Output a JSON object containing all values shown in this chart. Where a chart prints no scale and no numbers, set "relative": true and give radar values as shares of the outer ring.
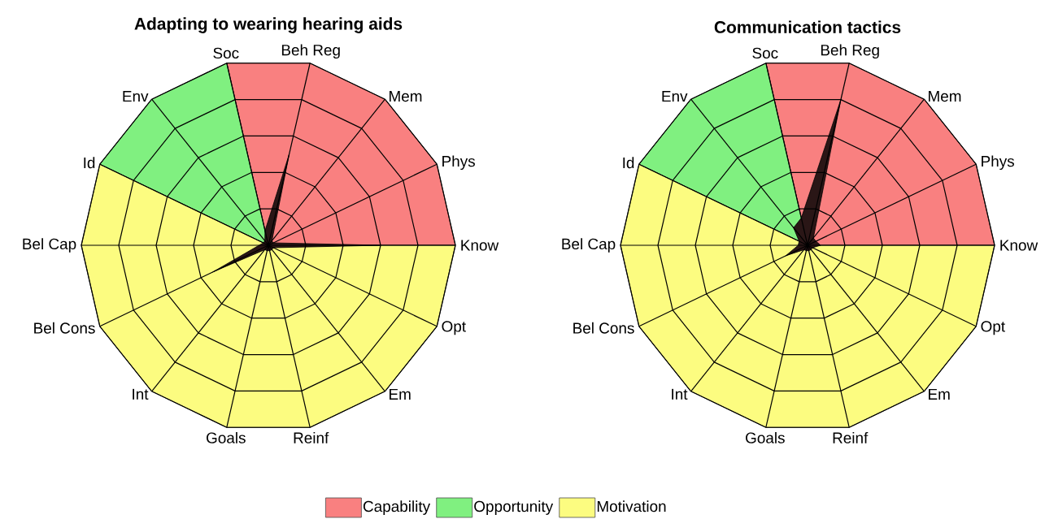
{
  "chart_data": [
    {
      "type": "radar",
      "title": "Adapting to wearing hearing aids",
      "relative": true,
      "grid": true,
      "legend": "bottom",
      "categories": [
        "Beh Reg",
        "Mem",
        "Phys",
        "Know",
        "Opt",
        "Em",
        "Reinf",
        "Goals",
        "Int",
        "Bel Cons",
        "Bel Cap",
        "Id",
        "Env",
        "Soc"
      ],
      "series": [
        {
          "name": "Capability",
          "color": "#f98080",
          "values": [
            1,
            1,
            1,
            1,
            0,
            0,
            0,
            0,
            0,
            0,
            0,
            0,
            0,
            1
          ]
        },
        {
          "name": "Opportunity",
          "color": "#80f080",
          "values": [
            0,
            0,
            0,
            0,
            0,
            0,
            0,
            0,
            0,
            0,
            0,
            1,
            1,
            1
          ]
        },
        {
          "name": "Motivation",
          "color": "#fcfc80",
          "values": [
            0,
            0,
            0,
            1,
            1,
            1,
            1,
            1,
            1,
            1,
            1,
            1,
            0,
            0
          ]
        },
        {
          "color": "#2a1616",
          "values": [
            0.5,
            0.03,
            0.03,
            0.6,
            0.03,
            0.03,
            0.03,
            0.03,
            0.03,
            0.33,
            0.05,
            0.03,
            0.03,
            0.08
          ]
        }
      ]
    },
    {
      "type": "radar",
      "title": "Communication tactics",
      "relative": true,
      "grid": true,
      "categories": [
        "Beh Reg",
        "Mem",
        "Phys",
        "Know",
        "Opt",
        "Em",
        "Reinf",
        "Goals",
        "Int",
        "Bel Cons",
        "Bel Cap",
        "Id",
        "Env",
        "Soc"
      ],
      "series": [
        {
          "color": "#f98080",
          "values": [
            1,
            1,
            1,
            1,
            0,
            0,
            0,
            0,
            0,
            0,
            0,
            0,
            0,
            1
          ]
        },
        {
          "color": "#80f080",
          "values": [
            0,
            0,
            0,
            0,
            0,
            0,
            0,
            0,
            0,
            0,
            0,
            1,
            1,
            1
          ]
        },
        {
          "color": "#fcfc80",
          "values": [
            0,
            0,
            0,
            1,
            1,
            1,
            1,
            1,
            1,
            1,
            1,
            1,
            0,
            0
          ]
        },
        {
          "color": "#2a1616",
          "values": [
            0.8,
            0.05,
            0.05,
            0.07,
            0.03,
            0.03,
            0.03,
            0.03,
            0.03,
            0.13,
            0.05,
            0.05,
            0.12,
            0.15
          ]
        }
      ]
    }
  ]
}
